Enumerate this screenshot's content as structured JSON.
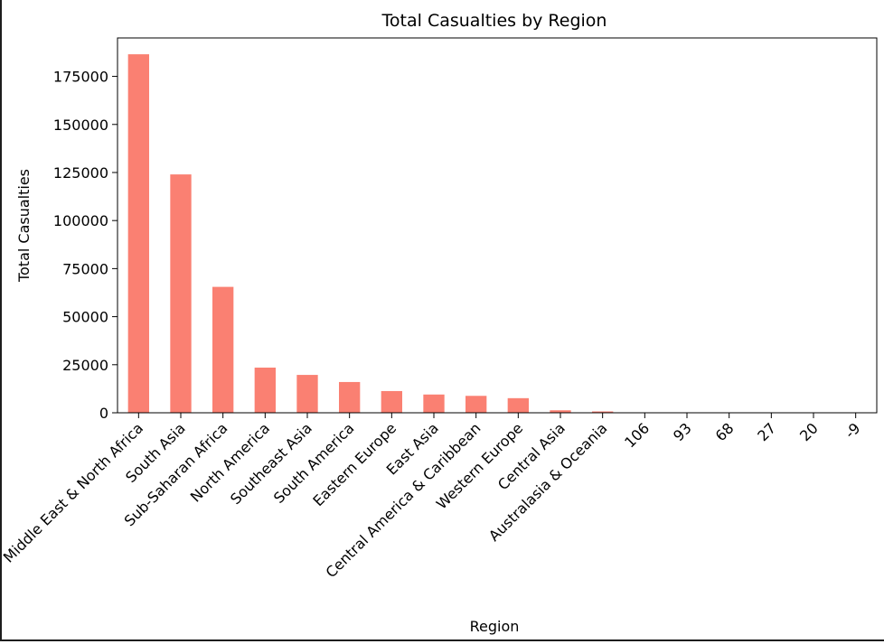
{
  "chart_data": {
    "type": "bar",
    "title": "Total Casualties by Region",
    "xlabel": "Region",
    "ylabel": "Total Casualties",
    "categories": [
      "Middle East & North Africa",
      "South Asia",
      "Sub-Saharan Africa",
      "North America",
      "Southeast Asia",
      "South America",
      "Eastern Europe",
      "East Asia",
      "Central America & Caribbean",
      "Western Europe",
      "Central Asia",
      "Australasia & Oceania",
      "106",
      "93",
      "68",
      "27",
      "20",
      "-9"
    ],
    "values": [
      186500,
      124000,
      65500,
      23500,
      19700,
      16000,
      11300,
      9500,
      8800,
      7600,
      1300,
      700,
      106,
      93,
      68,
      27,
      20,
      -9
    ],
    "ylim": [
      0,
      195000
    ],
    "yticks": [
      0,
      25000,
      50000,
      75000,
      100000,
      125000,
      150000,
      175000
    ],
    "bar_color": "#fa8072",
    "grid": false,
    "legend": "none"
  }
}
